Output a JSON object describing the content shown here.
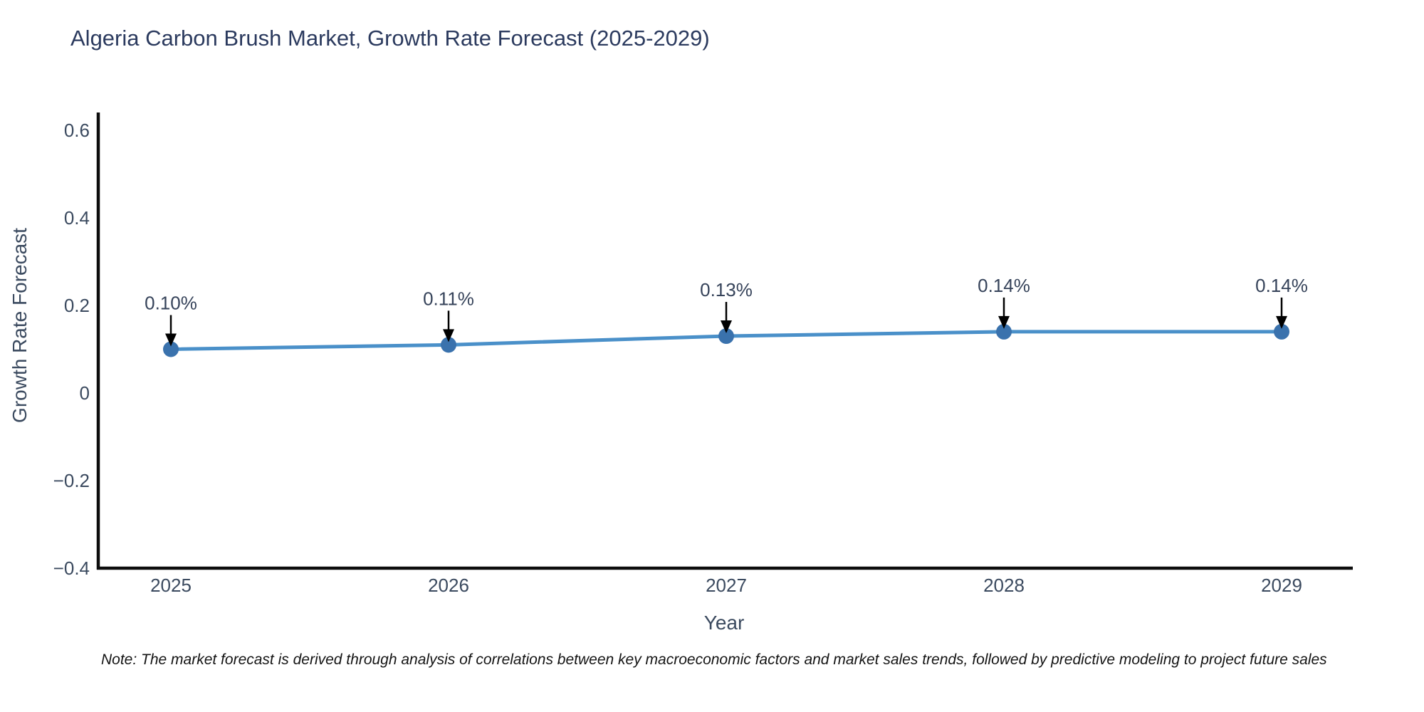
{
  "title": "Algeria Carbon Brush Market, Growth Rate Forecast (2025-2029)",
  "note": "Note: The market forecast is derived through analysis of correlations between key macroeconomic factors and market sales trends, followed by predictive modeling to project future sales",
  "chart_data": {
    "type": "line",
    "x": [
      "2025",
      "2026",
      "2027",
      "2028",
      "2029"
    ],
    "series": [
      {
        "name": "Growth Rate Forecast",
        "values": [
          0.1,
          0.11,
          0.13,
          0.14,
          0.14
        ]
      }
    ],
    "point_labels": [
      "0.10%",
      "0.11%",
      "0.13%",
      "0.14%",
      "0.14%"
    ],
    "title": "Algeria Carbon Brush Market, Growth Rate Forecast (2025-2029)",
    "xlabel": "Year",
    "ylabel": "Growth Rate Forecast",
    "ylim": [
      -0.4,
      0.6
    ],
    "ytick_values": [
      0.6,
      0.4,
      0.2,
      0,
      -0.2,
      -0.4
    ],
    "ytick_labels": [
      "0.6",
      "0.4",
      "0.2",
      "0",
      "−0.2",
      "−0.4"
    ],
    "grid": false,
    "legend_position": "none",
    "annotations": "arrow-to-point",
    "colors": {
      "line": "#4a90c9",
      "marker": "#3a72ad",
      "arrow": "#000000",
      "axis": "#0d0d0d",
      "title_text": "#2b3a5e",
      "tick_text": "#3b4a5f",
      "background": "#ffffff"
    }
  }
}
